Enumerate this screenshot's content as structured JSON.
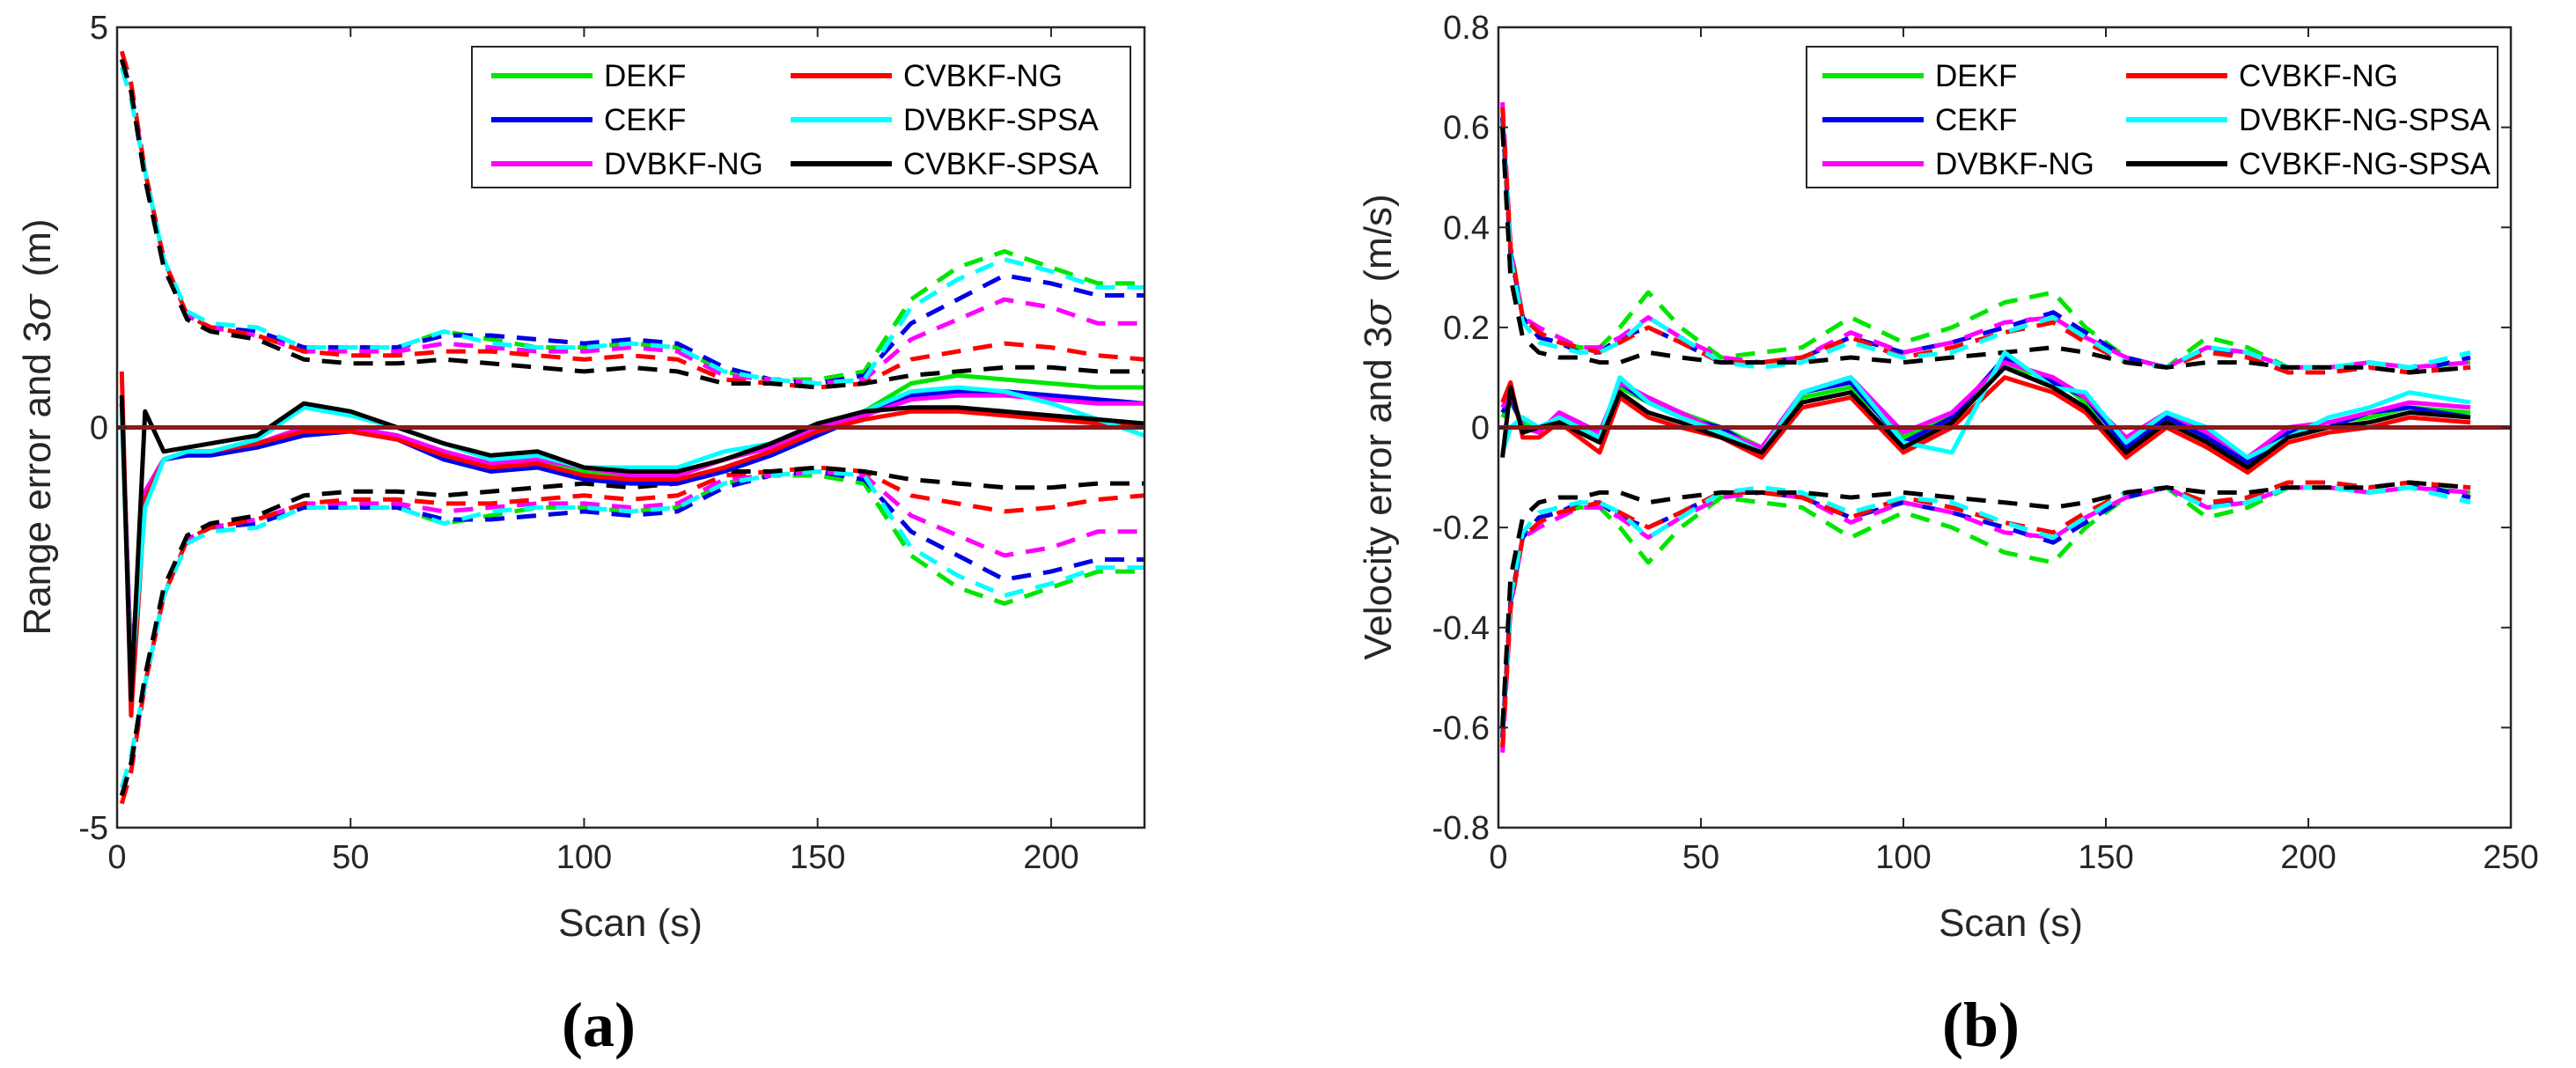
{
  "colors": {
    "DEKF": "#00e600",
    "CEKF": "#0000e6",
    "DVBKF": "#ff00ff",
    "CVBKF": "#ff0000",
    "SPSA_D": "#00ffff",
    "SPSA_C": "#000000",
    "zero": "#8b1a1a"
  },
  "chart_data": [
    {
      "type": "line",
      "panel_label": "(a)",
      "xlabel": "Scan (s)",
      "ylabel_main": "Range error and 3",
      "ylabel_sigma": "σ",
      "ylabel_unit": "(m)",
      "xlim": [
        0,
        220
      ],
      "ylim": [
        -5,
        5
      ],
      "xticks": [
        0,
        50,
        100,
        150,
        200
      ],
      "xtick_labels": [
        "0",
        "50",
        "100",
        "150",
        "200"
      ],
      "yticks": [
        -5,
        0,
        5
      ],
      "ytick_labels": [
        "-5",
        "0",
        "5"
      ],
      "legend": [
        "DEKF",
        "CEKF",
        "DVBKF-NG",
        "CVBKF-NG",
        "DVBKF-SPSA",
        "CVBKF-SPSA"
      ],
      "legend_colors": [
        "DEKF",
        "CEKF",
        "DVBKF",
        "CVBKF",
        "SPSA_D",
        "SPSA_C"
      ],
      "legend_position": "top-right",
      "x": [
        1,
        3,
        6,
        10,
        15,
        20,
        30,
        40,
        50,
        60,
        70,
        80,
        90,
        100,
        110,
        120,
        130,
        140,
        150,
        160,
        170,
        180,
        190,
        200,
        210,
        220
      ],
      "sigma_bounds": [
        {
          "name": "DEKF",
          "color": "DEKF",
          "upper": [
            4.6,
            4.2,
            3.2,
            2.1,
            1.4,
            1.25,
            1.2,
            1.0,
            1.0,
            1.0,
            1.2,
            1.1,
            1.0,
            1.0,
            1.05,
            1.0,
            0.7,
            0.6,
            0.6,
            0.7,
            1.6,
            2.0,
            2.2,
            2.0,
            1.8,
            1.8
          ]
        },
        {
          "name": "CEKF",
          "color": "CEKF",
          "upper": [
            4.6,
            4.2,
            3.2,
            2.1,
            1.4,
            1.25,
            1.2,
            1.0,
            1.0,
            1.0,
            1.15,
            1.15,
            1.1,
            1.05,
            1.1,
            1.05,
            0.75,
            0.6,
            0.55,
            0.65,
            1.3,
            1.6,
            1.9,
            1.8,
            1.65,
            1.65
          ]
        },
        {
          "name": "DVBKF-NG",
          "color": "DVBKF",
          "upper": [
            4.6,
            4.2,
            3.2,
            2.1,
            1.4,
            1.25,
            1.15,
            0.95,
            0.95,
            0.95,
            1.05,
            1.0,
            0.95,
            0.95,
            1.0,
            0.95,
            0.65,
            0.6,
            0.55,
            0.6,
            1.1,
            1.35,
            1.6,
            1.5,
            1.3,
            1.3
          ]
        },
        {
          "name": "CVBKF-NG",
          "color": "CVBKF",
          "upper": [
            4.7,
            4.3,
            3.2,
            2.1,
            1.4,
            1.25,
            1.15,
            0.95,
            0.9,
            0.9,
            0.95,
            0.95,
            0.9,
            0.85,
            0.9,
            0.85,
            0.6,
            0.55,
            0.5,
            0.55,
            0.85,
            0.95,
            1.05,
            1.0,
            0.9,
            0.85
          ]
        },
        {
          "name": "DVBKF-SPSA",
          "color": "SPSA_D",
          "upper": [
            4.5,
            4.1,
            3.2,
            2.1,
            1.45,
            1.3,
            1.25,
            1.0,
            1.0,
            1.0,
            1.2,
            1.05,
            1.0,
            1.0,
            1.05,
            1.0,
            0.7,
            0.6,
            0.55,
            0.6,
            1.5,
            1.85,
            2.1,
            1.95,
            1.75,
            1.75
          ]
        },
        {
          "name": "CVBKF-SPSA",
          "color": "SPSA_C",
          "upper": [
            4.6,
            4.2,
            3.1,
            2.0,
            1.35,
            1.2,
            1.1,
            0.85,
            0.8,
            0.8,
            0.85,
            0.8,
            0.75,
            0.7,
            0.75,
            0.7,
            0.55,
            0.55,
            0.5,
            0.55,
            0.65,
            0.7,
            0.75,
            0.75,
            0.7,
            0.7
          ]
        }
      ],
      "errors": [
        {
          "name": "DEKF",
          "color": "DEKF",
          "y": [
            0.3,
            -3.0,
            -0.8,
            -0.4,
            -0.3,
            -0.3,
            -0.2,
            0.0,
            0.0,
            -0.1,
            -0.3,
            -0.5,
            -0.4,
            -0.55,
            -0.6,
            -0.6,
            -0.4,
            -0.2,
            0.0,
            0.2,
            0.55,
            0.65,
            0.6,
            0.55,
            0.5,
            0.5
          ]
        },
        {
          "name": "CEKF",
          "color": "CEKF",
          "y": [
            0.3,
            -3.0,
            -0.8,
            -0.4,
            -0.35,
            -0.35,
            -0.25,
            -0.1,
            -0.05,
            -0.15,
            -0.4,
            -0.55,
            -0.5,
            -0.65,
            -0.7,
            -0.7,
            -0.55,
            -0.35,
            -0.1,
            0.15,
            0.4,
            0.45,
            0.45,
            0.4,
            0.35,
            0.3
          ]
        },
        {
          "name": "DVBKF-NG",
          "color": "DVBKF",
          "y": [
            0.3,
            -3.0,
            -0.8,
            -0.4,
            -0.3,
            -0.3,
            -0.2,
            0.0,
            0.0,
            -0.1,
            -0.3,
            -0.45,
            -0.4,
            -0.5,
            -0.6,
            -0.6,
            -0.4,
            -0.25,
            0.0,
            0.15,
            0.35,
            0.4,
            0.4,
            0.35,
            0.3,
            0.3
          ]
        },
        {
          "name": "CVBKF-NG",
          "color": "CVBKF",
          "y": [
            0.7,
            -3.6,
            -0.9,
            -0.4,
            -0.3,
            -0.3,
            -0.2,
            -0.05,
            -0.05,
            -0.15,
            -0.35,
            -0.5,
            -0.45,
            -0.6,
            -0.65,
            -0.65,
            -0.5,
            -0.3,
            -0.05,
            0.1,
            0.2,
            0.2,
            0.15,
            0.1,
            0.05,
            0.05
          ]
        },
        {
          "name": "DVBKF-SPSA",
          "color": "SPSA_D",
          "y": [
            0.2,
            -3.2,
            -1.0,
            -0.4,
            -0.3,
            -0.3,
            -0.15,
            0.25,
            0.15,
            0.0,
            -0.2,
            -0.4,
            -0.35,
            -0.5,
            -0.5,
            -0.5,
            -0.3,
            -0.2,
            0.05,
            0.2,
            0.45,
            0.5,
            0.45,
            0.3,
            0.1,
            -0.1
          ]
        },
        {
          "name": "CVBKF-SPSA",
          "color": "SPSA_C",
          "y": [
            0.4,
            -3.4,
            0.2,
            -0.3,
            -0.25,
            -0.2,
            -0.1,
            0.3,
            0.2,
            0.0,
            -0.2,
            -0.35,
            -0.3,
            -0.5,
            -0.55,
            -0.55,
            -0.4,
            -0.2,
            0.05,
            0.2,
            0.25,
            0.25,
            0.2,
            0.15,
            0.1,
            0.05
          ]
        }
      ]
    },
    {
      "type": "line",
      "panel_label": "(b)",
      "xlabel": "Scan (s)",
      "ylabel_main": "Velocity error and 3",
      "ylabel_sigma": "σ",
      "ylabel_unit": "(m/s)",
      "xlim": [
        0,
        250
      ],
      "ylim": [
        -0.8,
        0.8
      ],
      "xticks": [
        0,
        50,
        100,
        150,
        200,
        250
      ],
      "xtick_labels": [
        "0",
        "50",
        "100",
        "150",
        "200",
        "250"
      ],
      "yticks": [
        -0.8,
        -0.6,
        -0.4,
        -0.2,
        0,
        0.2,
        0.4,
        0.6,
        0.8
      ],
      "ytick_labels": [
        "-0.8",
        "-0.6",
        "-0.4",
        "-0.2",
        "0",
        "0.2",
        "0.4",
        "0.6",
        "0.8"
      ],
      "legend": [
        "DEKF",
        "CEKF",
        "DVBKF-NG",
        "CVBKF-NG",
        "DVBKF-NG-SPSA",
        "CVBKF-NG-SPSA"
      ],
      "legend_colors": [
        "DEKF",
        "CEKF",
        "DVBKF",
        "CVBKF",
        "SPSA_D",
        "SPSA_C"
      ],
      "legend_position": "top-right",
      "x": [
        1,
        3,
        6,
        10,
        15,
        20,
        25,
        30,
        37,
        45,
        55,
        65,
        75,
        87,
        100,
        112,
        125,
        137,
        145,
        155,
        165,
        175,
        185,
        195,
        205,
        215,
        225,
        240
      ],
      "sigma_bounds": [
        {
          "name": "DEKF",
          "color": "DEKF",
          "upper": [
            0.62,
            0.35,
            0.22,
            0.18,
            0.17,
            0.16,
            0.16,
            0.2,
            0.27,
            0.2,
            0.14,
            0.15,
            0.16,
            0.22,
            0.17,
            0.2,
            0.25,
            0.27,
            0.2,
            0.14,
            0.12,
            0.18,
            0.16,
            0.12,
            0.12,
            0.13,
            0.12,
            0.13
          ]
        },
        {
          "name": "CEKF",
          "color": "CEKF",
          "upper": [
            0.62,
            0.35,
            0.22,
            0.18,
            0.17,
            0.15,
            0.15,
            0.18,
            0.2,
            0.17,
            0.13,
            0.13,
            0.14,
            0.18,
            0.15,
            0.17,
            0.2,
            0.23,
            0.19,
            0.14,
            0.12,
            0.16,
            0.14,
            0.11,
            0.11,
            0.12,
            0.11,
            0.14
          ]
        },
        {
          "name": "DVBKF-NG",
          "color": "DVBKF",
          "upper": [
            0.65,
            0.36,
            0.22,
            0.2,
            0.18,
            0.16,
            0.16,
            0.18,
            0.22,
            0.18,
            0.14,
            0.13,
            0.14,
            0.19,
            0.15,
            0.17,
            0.21,
            0.22,
            0.18,
            0.14,
            0.12,
            0.16,
            0.15,
            0.12,
            0.12,
            0.13,
            0.12,
            0.13
          ]
        },
        {
          "name": "CVBKF-NG",
          "color": "CVBKF",
          "upper": [
            0.64,
            0.36,
            0.22,
            0.19,
            0.17,
            0.16,
            0.15,
            0.17,
            0.2,
            0.17,
            0.13,
            0.13,
            0.14,
            0.18,
            0.14,
            0.16,
            0.19,
            0.21,
            0.17,
            0.13,
            0.12,
            0.15,
            0.14,
            0.11,
            0.11,
            0.12,
            0.11,
            0.12
          ]
        },
        {
          "name": "DVBKF-NG-SPSA",
          "color": "SPSA_D",
          "upper": [
            0.6,
            0.34,
            0.21,
            0.17,
            0.16,
            0.15,
            0.15,
            0.17,
            0.22,
            0.18,
            0.13,
            0.12,
            0.13,
            0.17,
            0.14,
            0.15,
            0.19,
            0.22,
            0.18,
            0.13,
            0.12,
            0.16,
            0.15,
            0.12,
            0.12,
            0.13,
            0.12,
            0.15
          ]
        },
        {
          "name": "CVBKF-NG-SPSA",
          "color": "SPSA_C",
          "upper": [
            0.6,
            0.3,
            0.18,
            0.15,
            0.14,
            0.14,
            0.13,
            0.13,
            0.15,
            0.14,
            0.13,
            0.13,
            0.13,
            0.14,
            0.13,
            0.14,
            0.15,
            0.16,
            0.15,
            0.13,
            0.12,
            0.13,
            0.13,
            0.12,
            0.12,
            0.12,
            0.11,
            0.12
          ]
        }
      ],
      "errors": [
        {
          "name": "DEKF",
          "color": "DEKF",
          "y": [
            0.02,
            0.05,
            0.01,
            0.0,
            0.02,
            0.0,
            -0.02,
            0.08,
            0.05,
            0.03,
            0.0,
            -0.04,
            0.06,
            0.08,
            -0.02,
            0.03,
            0.12,
            0.1,
            0.05,
            -0.03,
            0.02,
            -0.01,
            -0.06,
            0.0,
            0.01,
            0.02,
            0.04,
            0.03
          ]
        },
        {
          "name": "CEKF",
          "color": "CEKF",
          "y": [
            0.03,
            0.06,
            0.0,
            0.0,
            0.02,
            0.01,
            -0.02,
            0.09,
            0.05,
            0.02,
            0.0,
            -0.05,
            0.07,
            0.09,
            -0.03,
            0.02,
            0.14,
            0.09,
            0.06,
            -0.04,
            0.02,
            -0.02,
            -0.07,
            -0.01,
            0.0,
            0.03,
            0.04,
            0.02
          ]
        },
        {
          "name": "DVBKF-NG",
          "color": "DVBKF",
          "y": [
            0.04,
            0.07,
            0.0,
            -0.01,
            0.03,
            0.01,
            -0.01,
            0.09,
            0.06,
            0.03,
            -0.01,
            -0.04,
            0.07,
            0.1,
            -0.01,
            0.03,
            0.13,
            0.1,
            0.06,
            -0.02,
            0.03,
            -0.01,
            -0.06,
            0.0,
            0.01,
            0.03,
            0.05,
            0.04
          ]
        },
        {
          "name": "CVBKF-NG",
          "color": "CVBKF",
          "y": [
            0.05,
            0.09,
            -0.02,
            -0.02,
            0.01,
            -0.02,
            -0.05,
            0.06,
            0.02,
            0.0,
            -0.02,
            -0.06,
            0.04,
            0.06,
            -0.05,
            0.0,
            0.1,
            0.07,
            0.03,
            -0.06,
            0.0,
            -0.04,
            -0.09,
            -0.03,
            -0.01,
            0.0,
            0.02,
            0.01
          ]
        },
        {
          "name": "DVBKF-NG-SPSA",
          "color": "SPSA_D",
          "y": [
            -0.05,
            0.0,
            0.02,
            0.0,
            0.02,
            0.0,
            -0.02,
            0.1,
            0.05,
            0.02,
            -0.01,
            -0.05,
            0.07,
            0.1,
            -0.03,
            -0.05,
            0.15,
            0.08,
            0.07,
            -0.03,
            0.03,
            0.0,
            -0.06,
            -0.02,
            0.02,
            0.04,
            0.07,
            0.05
          ]
        },
        {
          "name": "CVBKF-NG-SPSA",
          "color": "SPSA_C",
          "y": [
            -0.06,
            0.08,
            -0.01,
            0.0,
            0.01,
            -0.01,
            -0.03,
            0.07,
            0.03,
            0.01,
            -0.02,
            -0.05,
            0.05,
            0.07,
            -0.04,
            0.01,
            0.12,
            0.08,
            0.04,
            -0.05,
            0.01,
            -0.03,
            -0.08,
            -0.02,
            0.0,
            0.01,
            0.03,
            0.02
          ]
        }
      ]
    }
  ]
}
